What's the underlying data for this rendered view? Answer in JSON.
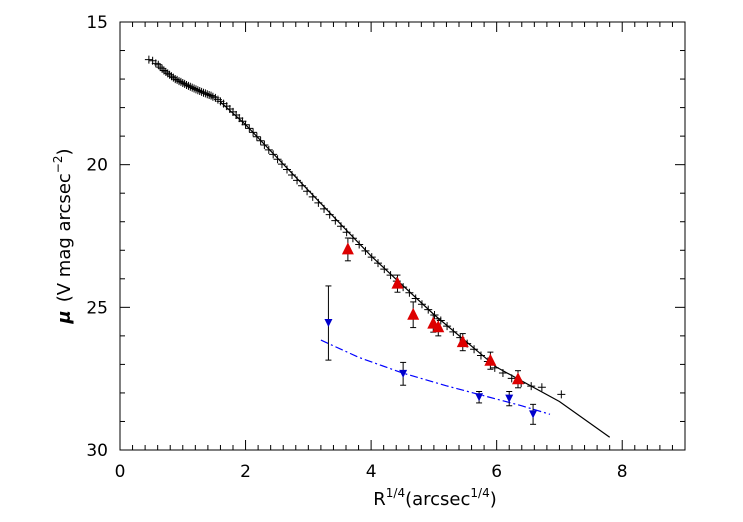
{
  "chart_data": {
    "type": "scatter",
    "xlabel": "R¹ᐟ⁴(arcsec¹ᐟ⁴)",
    "xlabel_parts": {
      "base": "R",
      "sup1": "1/4",
      "mid": "(arcsec",
      "sup2": "1/4",
      "end": ")"
    },
    "ylabel_parts": {
      "mu": "μ",
      "text": "(V mag arcsec",
      "sup": "−2",
      "end": ")"
    },
    "xlim": [
      0,
      9
    ],
    "ylim": [
      30,
      15
    ],
    "y_inverted": true,
    "x_ticks": [
      0,
      2,
      4,
      6,
      8
    ],
    "x_tick_labels": [
      "0",
      "2",
      "4",
      "6",
      "8"
    ],
    "x_minor_step": 0.2,
    "y_ticks": [
      15,
      20,
      25,
      30
    ],
    "y_tick_labels": [
      "15",
      "20",
      "25",
      "30"
    ],
    "y_minor_step": 1,
    "grid": false,
    "series": [
      {
        "marker": "plus",
        "color": "#000000",
        "points": [
          [
            0.46,
            16.32
          ],
          [
            0.52,
            16.36
          ],
          [
            0.57,
            16.45
          ],
          [
            0.61,
            16.5
          ],
          [
            0.64,
            16.58
          ],
          [
            0.67,
            16.64
          ],
          [
            0.7,
            16.7
          ],
          [
            0.73,
            16.75
          ],
          [
            0.76,
            16.8
          ],
          [
            0.79,
            16.85
          ],
          [
            0.82,
            16.9
          ],
          [
            0.85,
            16.95
          ],
          [
            0.88,
            17.0
          ],
          [
            0.91,
            17.03
          ],
          [
            0.94,
            17.07
          ],
          [
            0.97,
            17.1
          ],
          [
            1.0,
            17.14
          ],
          [
            1.03,
            17.17
          ],
          [
            1.06,
            17.21
          ],
          [
            1.09,
            17.24
          ],
          [
            1.12,
            17.27
          ],
          [
            1.15,
            17.3
          ],
          [
            1.18,
            17.33
          ],
          [
            1.21,
            17.36
          ],
          [
            1.24,
            17.39
          ],
          [
            1.27,
            17.42
          ],
          [
            1.3,
            17.45
          ],
          [
            1.33,
            17.48
          ],
          [
            1.36,
            17.5
          ],
          [
            1.39,
            17.53
          ],
          [
            1.42,
            17.56
          ],
          [
            1.45,
            17.58
          ],
          [
            1.48,
            17.62
          ],
          [
            1.52,
            17.66
          ],
          [
            1.56,
            17.72
          ],
          [
            1.6,
            17.78
          ],
          [
            1.65,
            17.86
          ],
          [
            1.7,
            17.95
          ],
          [
            1.75,
            18.05
          ],
          [
            1.8,
            18.15
          ],
          [
            1.85,
            18.26
          ],
          [
            1.9,
            18.37
          ],
          [
            1.95,
            18.48
          ],
          [
            2.0,
            18.6
          ],
          [
            2.06,
            18.73
          ],
          [
            2.12,
            18.87
          ],
          [
            2.18,
            19.02
          ],
          [
            2.24,
            19.16
          ],
          [
            2.3,
            19.31
          ],
          [
            2.37,
            19.48
          ],
          [
            2.44,
            19.64
          ],
          [
            2.51,
            19.81
          ],
          [
            2.58,
            19.98
          ],
          [
            2.66,
            20.17
          ],
          [
            2.74,
            20.36
          ],
          [
            2.82,
            20.55
          ],
          [
            2.9,
            20.74
          ],
          [
            2.98,
            20.93
          ],
          [
            3.07,
            21.13
          ],
          [
            3.16,
            21.34
          ],
          [
            3.25,
            21.55
          ],
          [
            3.34,
            21.75
          ],
          [
            3.43,
            21.96
          ],
          [
            3.52,
            22.16
          ],
          [
            3.61,
            22.37
          ],
          [
            3.71,
            22.58
          ],
          [
            3.81,
            22.8
          ],
          [
            3.91,
            23.02
          ],
          [
            4.01,
            23.24
          ],
          [
            4.11,
            23.45
          ],
          [
            4.21,
            23.66
          ],
          [
            4.31,
            23.87
          ],
          [
            4.41,
            24.08
          ],
          [
            4.51,
            24.29
          ],
          [
            4.61,
            24.49
          ],
          [
            4.71,
            24.69
          ],
          [
            4.81,
            24.89
          ],
          [
            4.91,
            25.08
          ],
          [
            5.01,
            25.27
          ],
          [
            5.11,
            25.46
          ],
          [
            5.21,
            25.66
          ],
          [
            5.31,
            25.86
          ],
          [
            5.42,
            26.06
          ],
          [
            5.53,
            26.27
          ],
          [
            5.64,
            26.47
          ],
          [
            5.75,
            26.69
          ],
          [
            5.86,
            26.9
          ],
          [
            5.97,
            27.12
          ],
          [
            6.1,
            27.3
          ],
          [
            6.24,
            27.49
          ],
          [
            6.39,
            27.66
          ],
          [
            6.55,
            27.76
          ],
          [
            6.72,
            27.8
          ],
          [
            7.03,
            28.05
          ]
        ]
      },
      {
        "marker": "triangle-up",
        "color": "#dd0000",
        "points": [
          [
            3.63,
            22.97
          ],
          [
            4.42,
            24.17
          ],
          [
            4.67,
            25.26
          ],
          [
            4.99,
            25.57
          ],
          [
            5.07,
            25.7
          ],
          [
            5.46,
            26.22
          ],
          [
            5.9,
            26.87
          ],
          [
            6.34,
            27.52
          ]
        ],
        "yerr": [
          0.4,
          0.3,
          0.45,
          0.3,
          0.3,
          0.3,
          0.3,
          0.3
        ]
      },
      {
        "marker": "triangle-down",
        "color": "#0000cc",
        "points": [
          [
            3.32,
            25.55
          ],
          [
            4.51,
            27.33
          ],
          [
            5.72,
            28.15
          ],
          [
            6.2,
            28.2
          ],
          [
            6.58,
            28.75
          ]
        ],
        "yerr": [
          1.3,
          0.4,
          0.2,
          0.25,
          0.35
        ]
      }
    ],
    "fits": [
      {
        "style": "solid",
        "color": "#000000",
        "points": [
          [
            1.6,
            17.8
          ],
          [
            2.0,
            18.6
          ],
          [
            3.0,
            20.9
          ],
          [
            4.0,
            23.2
          ],
          [
            5.0,
            25.25
          ],
          [
            6.0,
            27.1
          ],
          [
            7.0,
            28.3
          ],
          [
            7.8,
            29.55
          ]
        ]
      },
      {
        "style": "dash-dot",
        "color": "#0000ff",
        "points": [
          [
            3.2,
            26.15
          ],
          [
            3.8,
            26.75
          ],
          [
            4.5,
            27.3
          ],
          [
            5.2,
            27.75
          ],
          [
            5.8,
            28.1
          ],
          [
            6.4,
            28.45
          ],
          [
            6.85,
            28.75
          ]
        ]
      }
    ]
  }
}
